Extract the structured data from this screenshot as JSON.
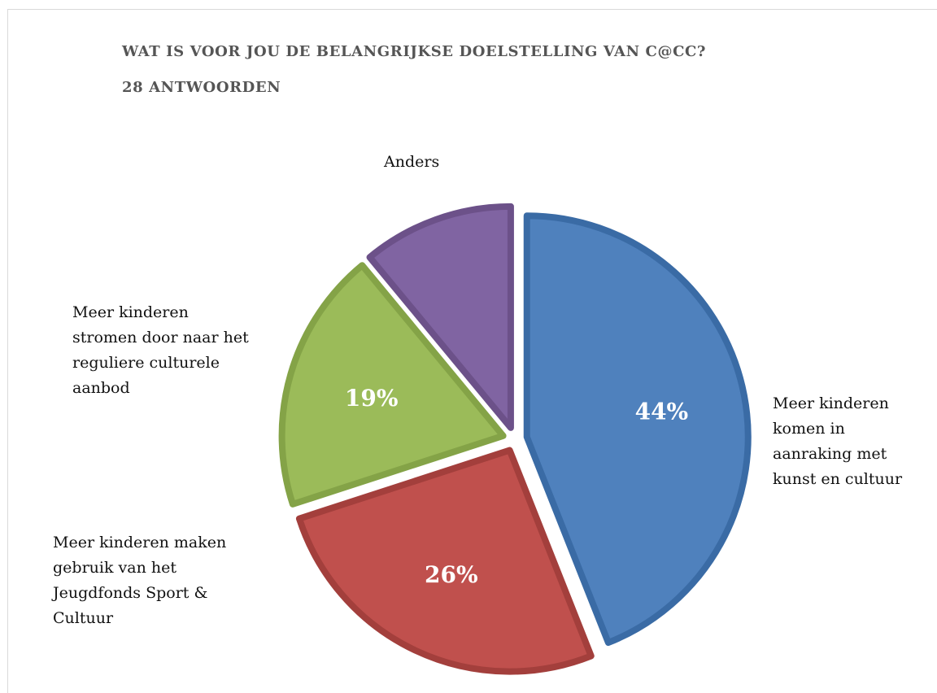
{
  "chart_data": {
    "type": "pie",
    "title": "WAT IS VOOR JOU DE BELANGRIJKSE DOELSTELLING VAN C@CC?",
    "subtitle": "28 ANTWOORDEN",
    "slices": [
      {
        "label": "Meer kinderen komen in aanraking met kunst en cultuur",
        "value": 44,
        "display": "44%",
        "color": "#4F81BD",
        "edge": "#3A6BA5"
      },
      {
        "label": "Meer kinderen maken gebruik van het Jeugdfonds Sport & Cultuur",
        "value": 26,
        "display": "26%",
        "color": "#C0504D",
        "edge": "#A33F3C"
      },
      {
        "label": "Meer kinderen stromen door naar het reguliere culturele aanbod",
        "value": 19,
        "display": "19%",
        "color": "#9BBB59",
        "edge": "#84A347"
      },
      {
        "label": "Anders",
        "value": 11,
        "display": "",
        "color": "#8064A2",
        "edge": "#6C5189"
      }
    ],
    "legend": "labels-outside"
  },
  "labels": {
    "anders": "Anders",
    "groen": [
      "Meer kinderen",
      "stromen door naar het",
      "reguliere culturele",
      "aanbod"
    ],
    "blauw": [
      "Meer kinderen",
      "komen in",
      "aanraking met",
      "kunst en cultuur"
    ],
    "rood": [
      "Meer kinderen maken",
      "gebruik van het",
      "Jeugdfonds Sport &",
      "Cultuur"
    ]
  }
}
